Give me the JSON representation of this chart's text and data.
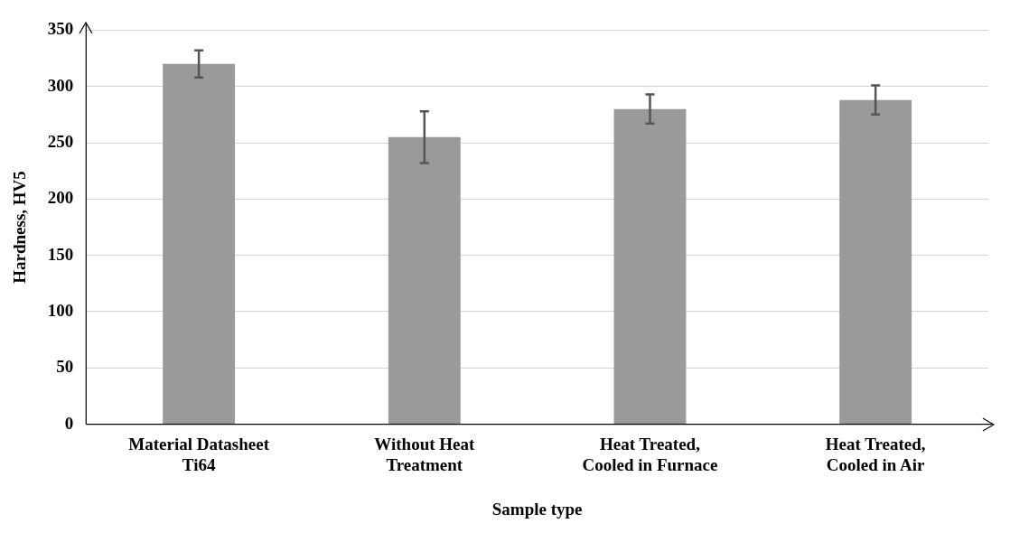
{
  "chart_data": {
    "type": "bar",
    "xlabel": "Sample type",
    "ylabel": "Hardness, HV5",
    "categories": [
      "Material Datasheet\nTi64",
      "Without Heat\nTreatment",
      "Heat Treated,\nCooled in Furnace",
      "Heat Treated,\nCooled in Air"
    ],
    "values": [
      320,
      255,
      280,
      288
    ],
    "errors": [
      12,
      23,
      13,
      13
    ],
    "color": "#989a9b",
    "ylim": [
      0,
      350
    ],
    "yticks": [
      0,
      50,
      100,
      150,
      200,
      250,
      300,
      350
    ],
    "grid": "y",
    "legend": false
  }
}
